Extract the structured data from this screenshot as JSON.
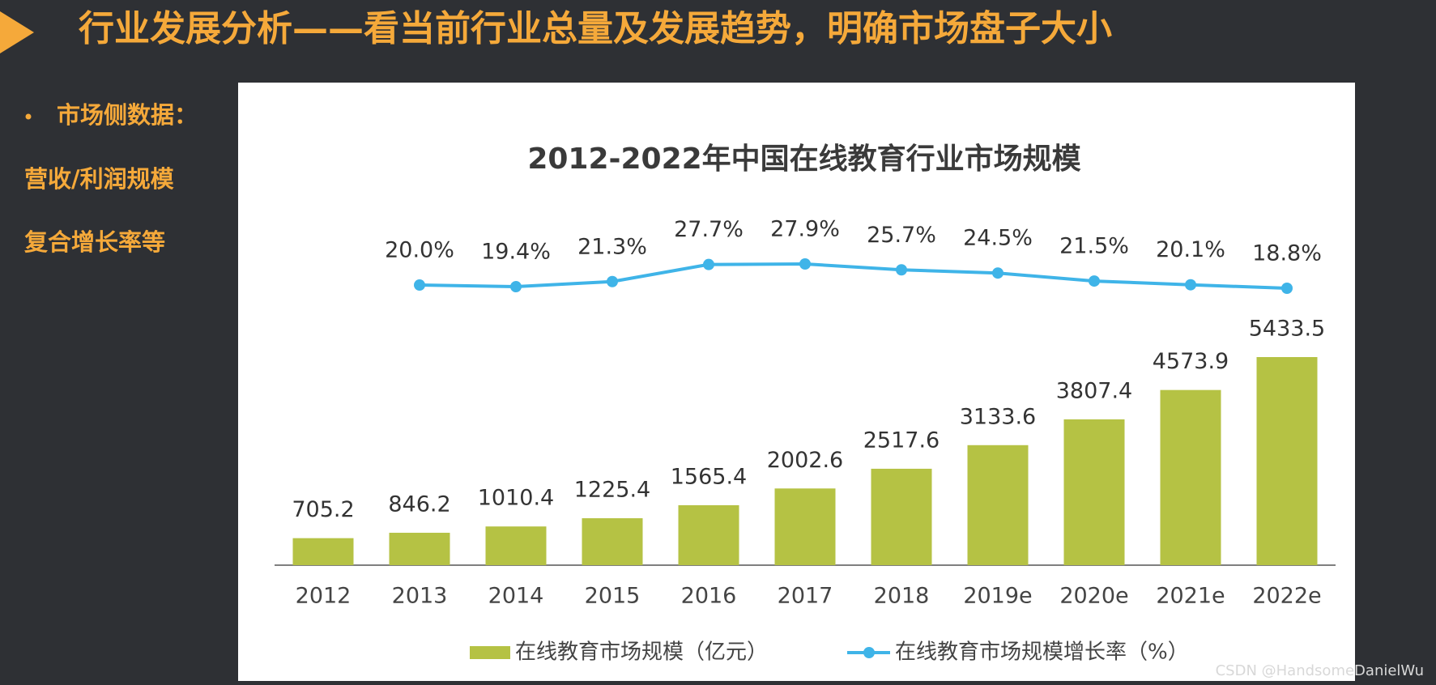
{
  "header": {
    "title": "行业发展分析——看当前行业总量及发展趋势，明确市场盘子大小"
  },
  "sidebar": [
    "市场侧数据：",
    "营收/利润规模",
    "复合增长率等"
  ],
  "watermark": "CSDN @HandsomeDanielWu",
  "chart_data": {
    "type": "bar",
    "title": "2012-2022年中国在线教育行业市场规模",
    "categories": [
      "2012",
      "2013",
      "2014",
      "2015",
      "2016",
      "2017",
      "2018",
      "2019e",
      "2020e",
      "2021e",
      "2022e"
    ],
    "series": [
      {
        "name": "在线教育市场规模（亿元）",
        "color": "#b5c244",
        "values": [
          705.2,
          846.2,
          1010.4,
          1225.4,
          1565.4,
          2002.6,
          2517.6,
          3133.6,
          3807.4,
          4573.9,
          5433.5
        ]
      },
      {
        "name": "在线教育市场规模增长率（%）",
        "type": "line",
        "color": "#3fb4e8",
        "values": [
          null,
          20.0,
          19.4,
          21.3,
          27.7,
          27.9,
          25.7,
          24.5,
          21.5,
          20.1,
          18.8
        ],
        "value_labels": [
          null,
          "20.0%",
          "19.4%",
          "21.3%",
          "27.7%",
          "27.9%",
          "25.7%",
          "24.5%",
          "21.5%",
          "20.1%",
          "18.8%"
        ]
      }
    ]
  }
}
